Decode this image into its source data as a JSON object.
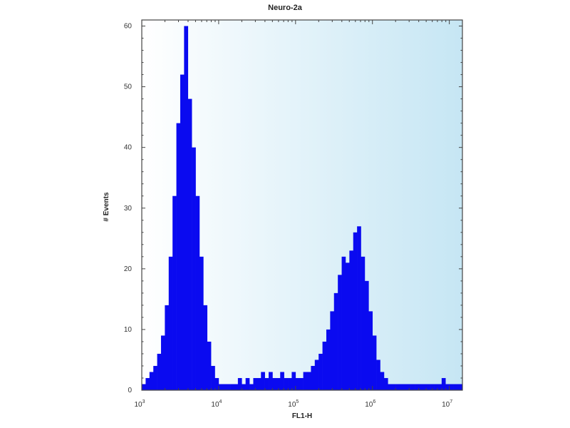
{
  "chart_data": {
    "type": "bar",
    "title": "Neuro-2a",
    "xlabel": "FL1-H",
    "ylabel": "# Events",
    "xscale": "log",
    "xlim": [
      1000,
      14800000
    ],
    "ylim": [
      0,
      61
    ],
    "grid": false,
    "colors": {
      "bars": "#0a0af0",
      "background_left": "#ffffff",
      "background_right": "#c6e6f4",
      "frame": "#444444"
    },
    "x_ticks": [
      {
        "base": "10",
        "exp": "3",
        "value": 1000
      },
      {
        "base": "10",
        "exp": "4",
        "value": 10000
      },
      {
        "base": "10",
        "exp": "5",
        "value": 100000
      },
      {
        "base": "10",
        "exp": "6",
        "value": 1000000
      },
      {
        "base": "10",
        "exp": "7",
        "value": 10000000
      }
    ],
    "y_ticks": [
      "0",
      "10",
      "20",
      "30",
      "40",
      "50",
      "60"
    ],
    "x": [
      1000,
      1122,
      1259,
      1413,
      1585,
      1778,
      1995,
      2239,
      2512,
      2818,
      3162,
      3548,
      3981,
      4467,
      5012,
      5623,
      6310,
      7079,
      7943,
      8913,
      10000,
      11220,
      12590,
      14130,
      15850,
      17780,
      19950,
      22390,
      25120,
      28180,
      31620,
      35480,
      39810,
      44670,
      50120,
      56230,
      63100,
      70790,
      79430,
      89130,
      100000,
      112200,
      125900,
      141300,
      158500,
      177800,
      199500,
      223900,
      251200,
      281800,
      316200,
      354800,
      398100,
      446700,
      501200,
      562300,
      631000,
      707900,
      794300,
      891300,
      1000000,
      1122000,
      1259000,
      1413000,
      1585000,
      1778000,
      1995000,
      2239000,
      2512000,
      2818000,
      3162000,
      3548000,
      3981000,
      4467000,
      5012000,
      5623000,
      6310000,
      7079000,
      7943000,
      8913000,
      10000000,
      11220000,
      12590000,
      14130000
    ],
    "values": [
      1,
      2,
      3,
      4,
      6,
      9,
      14,
      22,
      32,
      44,
      52,
      60,
      48,
      40,
      32,
      22,
      14,
      8,
      4,
      2,
      1,
      1,
      1,
      1,
      1,
      2,
      1,
      2,
      1,
      2,
      2,
      3,
      2,
      3,
      2,
      2,
      3,
      2,
      2,
      3,
      2,
      2,
      3,
      3,
      4,
      5,
      6,
      8,
      10,
      13,
      16,
      19,
      22,
      21,
      23,
      26,
      27,
      22,
      18,
      13,
      9,
      5,
      3,
      2,
      1,
      1,
      1,
      1,
      1,
      1,
      1,
      1,
      1,
      1,
      1,
      1,
      1,
      1,
      2,
      1,
      1,
      1,
      1,
      1
    ]
  }
}
